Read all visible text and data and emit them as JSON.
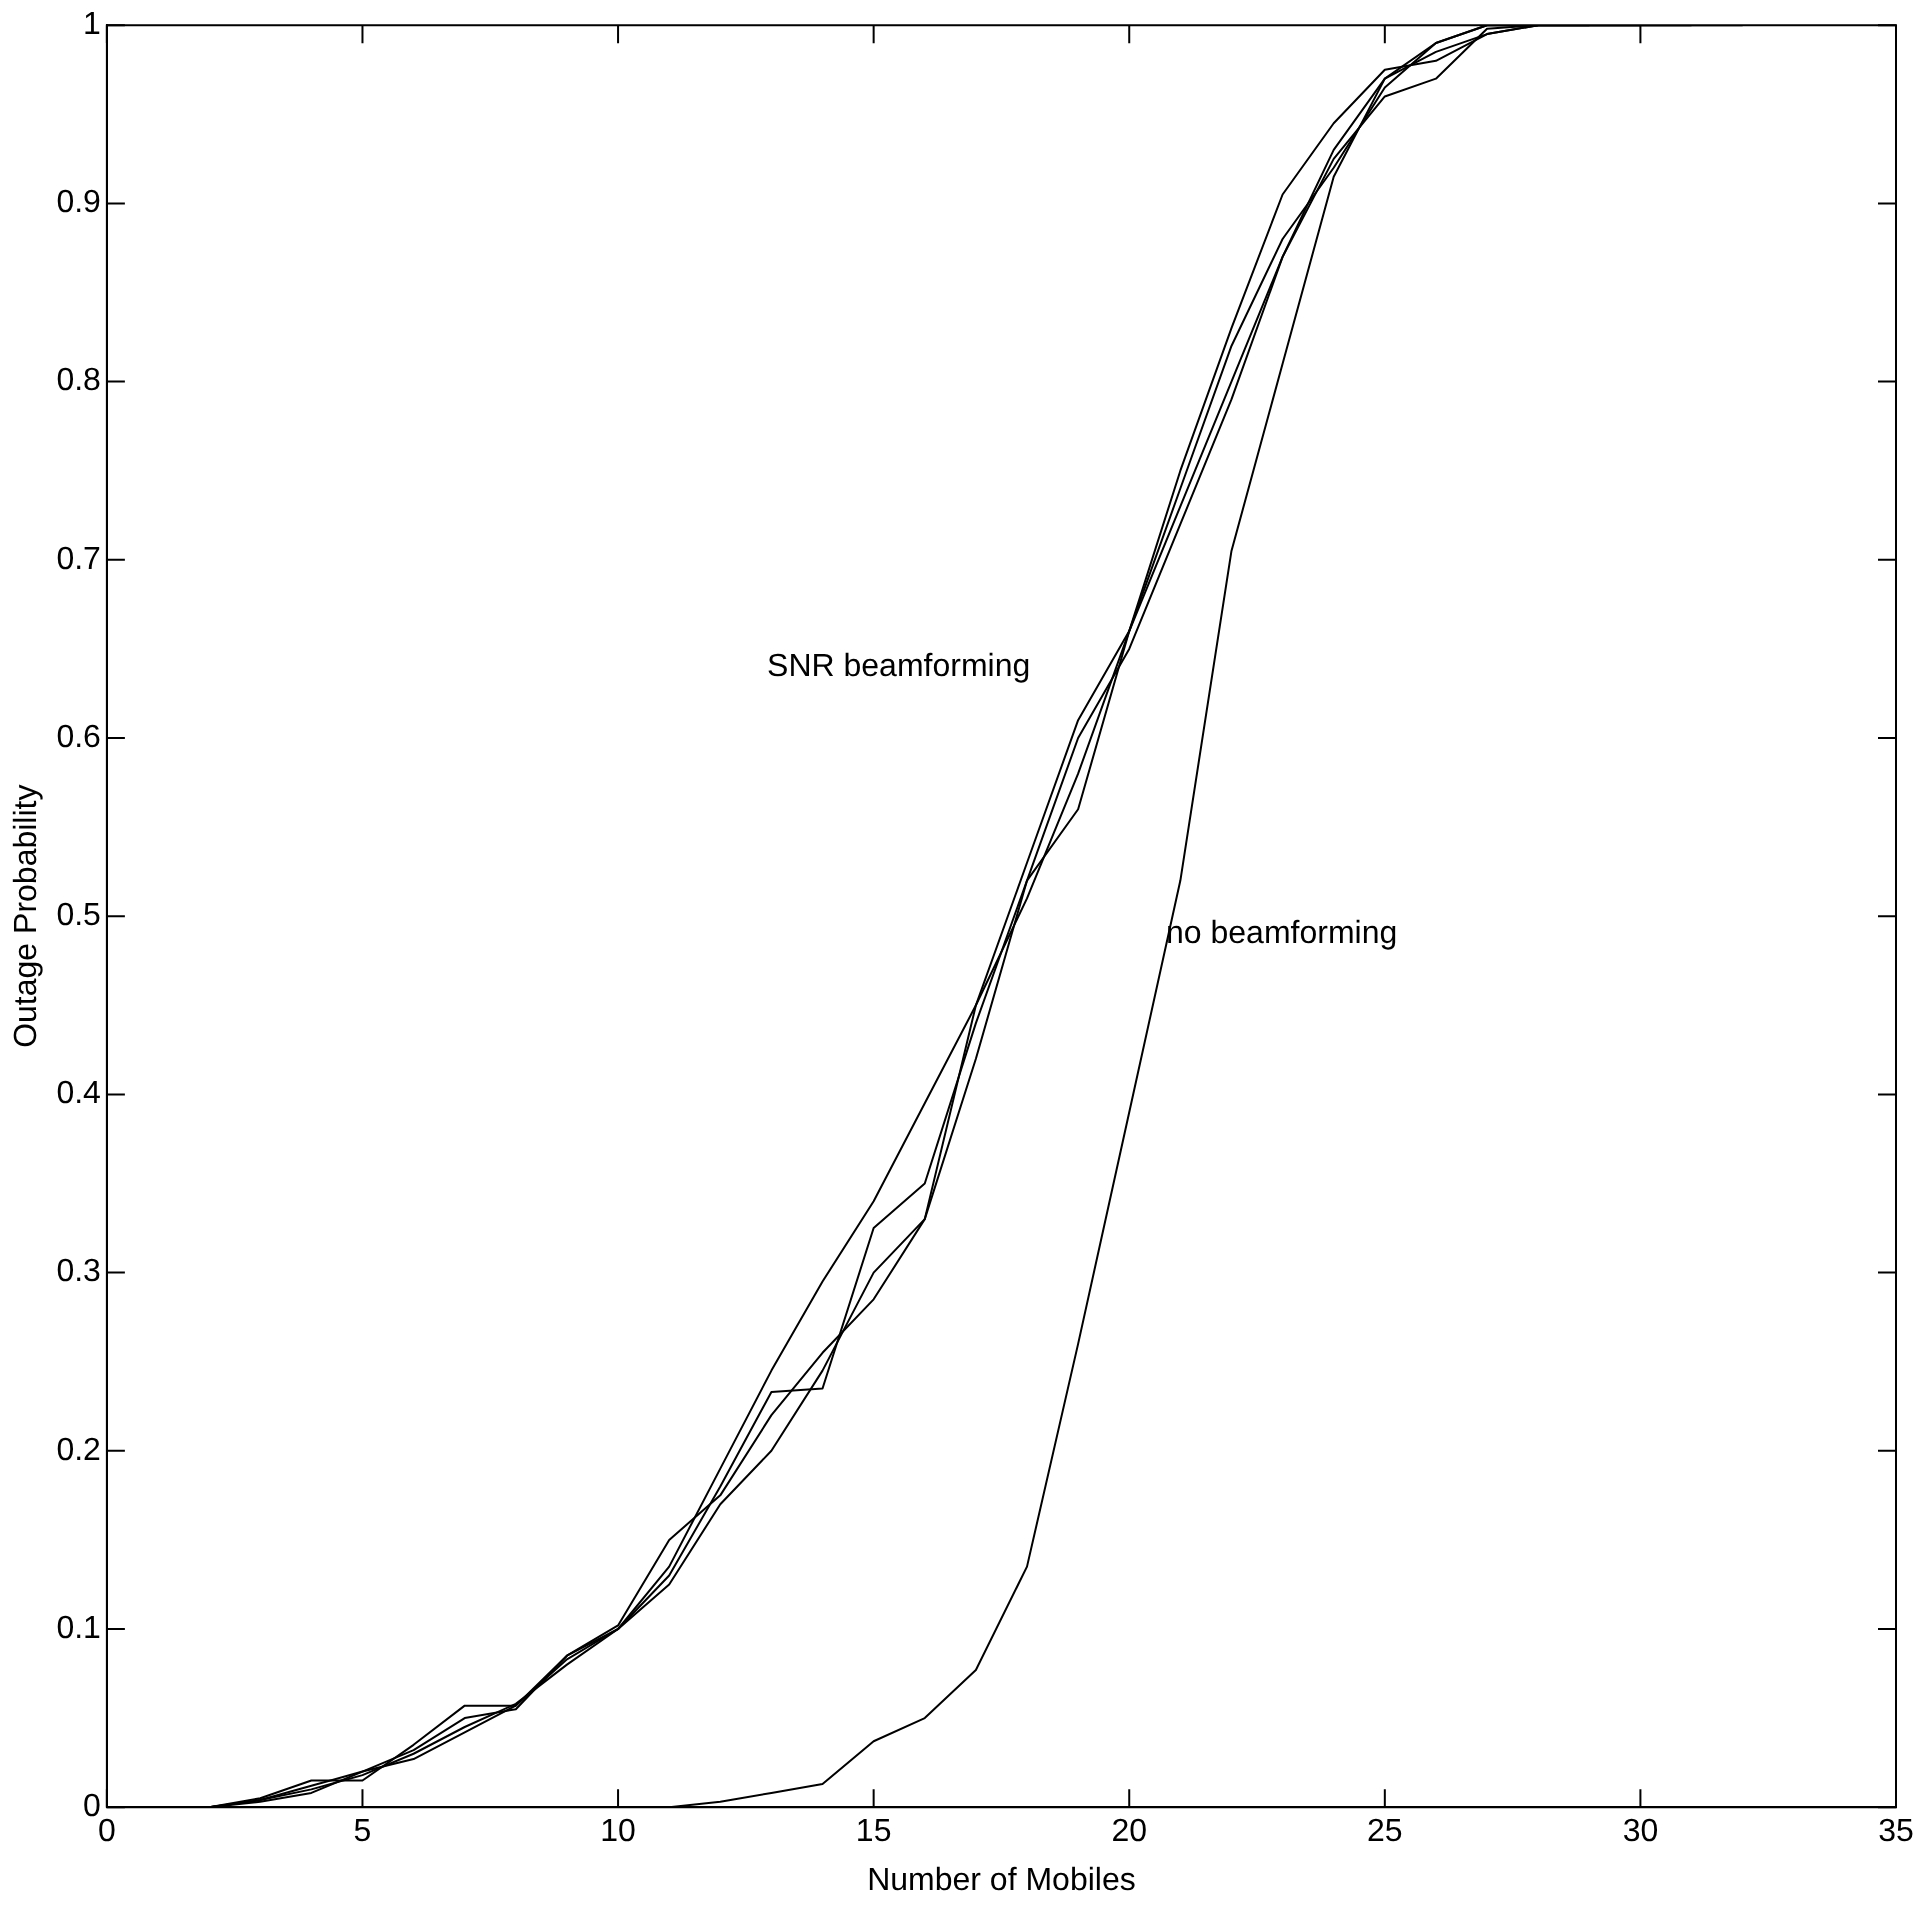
{
  "chart_data": {
    "type": "line",
    "xlabel": "Number of Mobiles",
    "ylabel": "Outage Probability",
    "x": [
      2,
      3,
      4,
      5,
      6,
      7,
      8,
      9,
      10,
      11,
      12,
      13,
      14,
      15,
      16,
      17,
      18,
      19,
      20,
      21,
      22,
      23,
      24,
      25,
      26,
      27,
      28,
      29,
      30,
      31,
      32
    ],
    "series": [
      {
        "color": "#000000",
        "values": [
          0,
          0.004,
          0.01,
          0.018,
          0.03,
          0.045,
          0.058,
          0.08,
          0.1,
          0.135,
          0.19,
          0.245,
          0.295,
          0.34,
          0.395,
          0.45,
          0.53,
          0.61,
          0.66,
          0.73,
          0.8,
          0.87,
          0.93,
          0.97,
          0.985,
          0.995,
          1,
          1,
          1,
          1,
          1
        ]
      },
      {
        "color": "#000000",
        "x": [
          2,
          3,
          4,
          5,
          6,
          7,
          8,
          9,
          10,
          11,
          12,
          13,
          14,
          15,
          16,
          17,
          18,
          19,
          20,
          21,
          22,
          23,
          24,
          25,
          26,
          27,
          28,
          29,
          30,
          31
        ],
        "values": [
          0,
          0.005,
          0.015,
          0.015,
          0.035,
          0.057,
          0.057,
          0.085,
          0.1,
          0.13,
          0.18,
          0.233,
          0.235,
          0.325,
          0.35,
          0.44,
          0.52,
          0.56,
          0.66,
          0.75,
          0.83,
          0.905,
          0.945,
          0.975,
          0.98,
          0.995,
          1,
          1,
          1,
          1
        ]
      },
      {
        "color": "#000000",
        "x": [
          2,
          3,
          4,
          5,
          6,
          7,
          8,
          9,
          10,
          11,
          12,
          13,
          14,
          15,
          16,
          17,
          18,
          19,
          20,
          21,
          22,
          23,
          24,
          25,
          26,
          27,
          28,
          29,
          30
        ],
        "values": [
          0,
          0.003,
          0.008,
          0.02,
          0.027,
          0.042,
          0.057,
          0.083,
          0.1,
          0.125,
          0.17,
          0.2,
          0.245,
          0.3,
          0.33,
          0.42,
          0.52,
          0.6,
          0.65,
          0.72,
          0.79,
          0.87,
          0.925,
          0.96,
          0.97,
          0.998,
          1,
          1,
          1
        ]
      },
      {
        "color": "#000000",
        "x": [
          2,
          3,
          4,
          5,
          6,
          7,
          8,
          9,
          10,
          11,
          12,
          13,
          14,
          15,
          16,
          17,
          18,
          19,
          20,
          21,
          22,
          23,
          24,
          25,
          26,
          27,
          28,
          29
        ],
        "values": [
          0,
          0.004,
          0.012,
          0.02,
          0.032,
          0.05,
          0.055,
          0.085,
          0.102,
          0.15,
          0.175,
          0.22,
          0.255,
          0.285,
          0.33,
          0.45,
          0.51,
          0.58,
          0.66,
          0.74,
          0.82,
          0.88,
          0.92,
          0.965,
          0.99,
          1,
          1,
          1
        ]
      },
      {
        "color": "#000000",
        "x": [
          10,
          11,
          12,
          13,
          14,
          15,
          16,
          17,
          18,
          19,
          20,
          21,
          22,
          23,
          24,
          25,
          26,
          27,
          28
        ],
        "values": [
          0,
          0,
          0.003,
          0.008,
          0.013,
          0.037,
          0.05,
          0.077,
          0.135,
          0.26,
          0.39,
          0.52,
          0.705,
          0.81,
          0.915,
          0.97,
          0.99,
          1,
          1
        ]
      }
    ],
    "xlim": [
      0,
      35
    ],
    "xticks": [
      0,
      5,
      10,
      15,
      20,
      25,
      30,
      35
    ],
    "ylim": [
      0,
      1
    ],
    "yticks": [
      0,
      0.1,
      0.2,
      0.3,
      0.4,
      0.5,
      0.6,
      0.7,
      0.8,
      0.9,
      1
    ],
    "grid": false,
    "legend": false,
    "marker": "none",
    "line_style": "solid",
    "annotations": [
      "SNR beamforming",
      "no beamforming"
    ]
  }
}
